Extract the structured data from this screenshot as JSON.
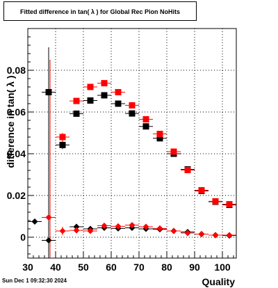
{
  "header": {
    "title": "Fitted difference in tan( λ ) for Global Rec Pion NoHits"
  },
  "footer": {
    "timestamp": "Sun Dec  1 09:32:30 2024"
  },
  "chart_data": {
    "type": "scatter",
    "title": "Fitted difference in tan( λ ) for Global Rec Pion NoHits",
    "xlabel": "Quality",
    "ylabel": "difference in tan( λ )",
    "xlim": [
      30,
      105
    ],
    "ylim": [
      -0.01,
      0.1
    ],
    "x_ticks": [
      30,
      40,
      50,
      60,
      70,
      80,
      90,
      100
    ],
    "y_ticks": [
      0,
      0.02,
      0.04,
      0.06,
      0.08
    ],
    "y_tick_labels": [
      "0",
      "0.02",
      "0.04",
      "0.06",
      "0.08"
    ],
    "grid": true,
    "series": [
      {
        "marker": "square",
        "color": "#000000",
        "points": [
          {
            "x": 37.5,
            "y": 0.0695,
            "yerr": 0.0215
          },
          {
            "x": 42.5,
            "y": 0.0442,
            "yerr": 0.002
          },
          {
            "x": 47.5,
            "y": 0.0592,
            "yerr": 0.0012
          },
          {
            "x": 52.5,
            "y": 0.0655,
            "yerr": 0.001
          },
          {
            "x": 57.5,
            "y": 0.068,
            "yerr": 0.0008
          },
          {
            "x": 62.5,
            "y": 0.064,
            "yerr": 0.0007
          },
          {
            "x": 67.5,
            "y": 0.0593,
            "yerr": 0.0006
          },
          {
            "x": 72.5,
            "y": 0.0531,
            "yerr": 0.0006
          },
          {
            "x": 77.5,
            "y": 0.0474,
            "yerr": 0.0005
          },
          {
            "x": 82.5,
            "y": 0.04,
            "yerr": 0.0005
          },
          {
            "x": 87.5,
            "y": 0.0325,
            "yerr": 0.0004
          },
          {
            "x": 92.5,
            "y": 0.0222,
            "yerr": 0.0004
          },
          {
            "x": 97.5,
            "y": 0.017,
            "yerr": 0.0003
          },
          {
            "x": 102.5,
            "y": 0.0155,
            "yerr": 0.0003
          }
        ]
      },
      {
        "marker": "square",
        "color": "#ff0000",
        "points": [
          {
            "x": 42.5,
            "y": 0.048,
            "yerr": 0.002
          },
          {
            "x": 47.5,
            "y": 0.0653,
            "yerr": 0.0012
          },
          {
            "x": 52.5,
            "y": 0.072,
            "yerr": 0.001
          },
          {
            "x": 57.5,
            "y": 0.0738,
            "yerr": 0.0008
          },
          {
            "x": 62.5,
            "y": 0.0695,
            "yerr": 0.0007
          },
          {
            "x": 67.5,
            "y": 0.0632,
            "yerr": 0.0006
          },
          {
            "x": 72.5,
            "y": 0.0565,
            "yerr": 0.0006
          },
          {
            "x": 77.5,
            "y": 0.0495,
            "yerr": 0.0005
          },
          {
            "x": 82.5,
            "y": 0.041,
            "yerr": 0.0005
          },
          {
            "x": 87.5,
            "y": 0.0322,
            "yerr": 0.0004
          },
          {
            "x": 92.5,
            "y": 0.0225,
            "yerr": 0.0004
          },
          {
            "x": 97.5,
            "y": 0.0172,
            "yerr": 0.0003
          },
          {
            "x": 102.5,
            "y": 0.0158,
            "yerr": 0.0003
          }
        ]
      },
      {
        "marker": "diamond",
        "color": "#000000",
        "points": [
          {
            "x": 32.5,
            "y": 0.0075,
            "yerr": 0.0
          },
          {
            "x": 37.5,
            "y": -0.0015,
            "yerr": 0.0
          },
          {
            "x": 47.5,
            "y": 0.005,
            "yerr": 0.001
          },
          {
            "x": 52.5,
            "y": 0.004,
            "yerr": 0.0008
          },
          {
            "x": 57.5,
            "y": 0.0045,
            "yerr": 0.0006
          },
          {
            "x": 62.5,
            "y": 0.0042,
            "yerr": 0.0005
          },
          {
            "x": 67.5,
            "y": 0.0045,
            "yerr": 0.0005
          },
          {
            "x": 72.5,
            "y": 0.004,
            "yerr": 0.0005
          },
          {
            "x": 77.5,
            "y": 0.0038,
            "yerr": 0.0004
          },
          {
            "x": 82.5,
            "y": 0.003,
            "yerr": 0.0004
          },
          {
            "x": 87.5,
            "y": 0.0025,
            "yerr": 0.0004
          },
          {
            "x": 92.5,
            "y": 0.0015,
            "yerr": 0.0003
          },
          {
            "x": 97.5,
            "y": 0.001,
            "yerr": 0.0003
          },
          {
            "x": 102.5,
            "y": 0.0008,
            "yerr": 0.0003
          }
        ]
      },
      {
        "marker": "diamond",
        "color": "#ff0000",
        "points": [
          {
            "x": 37.5,
            "y": 0.0095,
            "yerr": 0.0
          },
          {
            "x": 42.5,
            "y": 0.003,
            "yerr": 0.002
          },
          {
            "x": 47.5,
            "y": 0.0033,
            "yerr": 0.0012
          },
          {
            "x": 52.5,
            "y": 0.003,
            "yerr": 0.001
          },
          {
            "x": 57.5,
            "y": 0.0055,
            "yerr": 0.0008
          },
          {
            "x": 62.5,
            "y": 0.0052,
            "yerr": 0.0007
          },
          {
            "x": 67.5,
            "y": 0.0058,
            "yerr": 0.0006
          },
          {
            "x": 72.5,
            "y": 0.005,
            "yerr": 0.0006
          },
          {
            "x": 77.5,
            "y": 0.0042,
            "yerr": 0.0005
          },
          {
            "x": 82.5,
            "y": 0.003,
            "yerr": 0.0005
          },
          {
            "x": 87.5,
            "y": 0.002,
            "yerr": 0.0004
          },
          {
            "x": 92.5,
            "y": 0.0015,
            "yerr": 0.0004
          },
          {
            "x": 97.5,
            "y": 0.001,
            "yerr": 0.0003
          },
          {
            "x": 102.5,
            "y": 0.001,
            "yerr": 0.0003
          }
        ]
      }
    ],
    "annotations": [
      {
        "type": "vertical_error_line",
        "x": 37.5,
        "ymin": -0.01,
        "ymax": 0.091,
        "color": "#000000"
      },
      {
        "type": "vertical_error_line",
        "x": 38.0,
        "ymin": -0.01,
        "ymax": 0.085,
        "color": "#ff0000"
      }
    ]
  }
}
